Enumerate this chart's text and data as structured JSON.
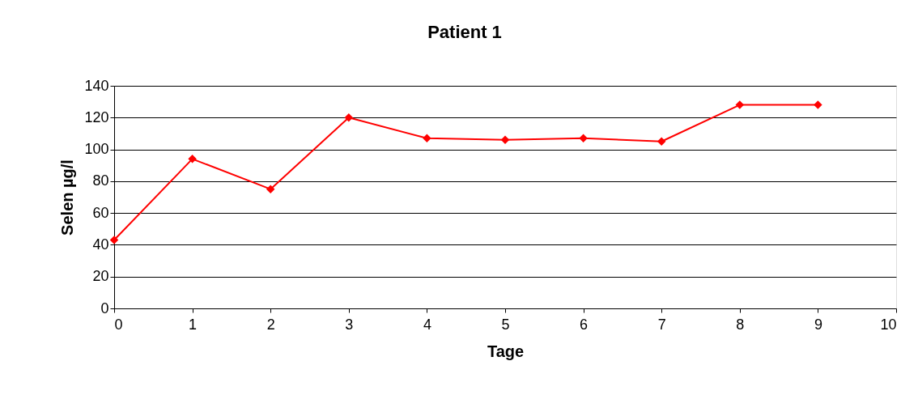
{
  "chart_data": {
    "type": "line",
    "title": "Patient 1",
    "xlabel": "Tage",
    "ylabel": "Selen µg/l",
    "x": [
      0,
      1,
      2,
      3,
      4,
      5,
      6,
      7,
      8,
      9
    ],
    "series": [
      {
        "color": "#ff0000",
        "values": [
          43,
          94,
          75,
          120,
          107,
          106,
          107,
          105,
          128,
          128
        ]
      }
    ],
    "xlim": [
      0,
      10
    ],
    "xticks": [
      0,
      1,
      2,
      3,
      4,
      5,
      6,
      7,
      8,
      9,
      10
    ],
    "ylim": [
      0,
      140
    ],
    "yticks": [
      0,
      20,
      40,
      60,
      80,
      100,
      120,
      140
    ],
    "grid": "y",
    "marker": "diamond",
    "line_style": "solid"
  }
}
